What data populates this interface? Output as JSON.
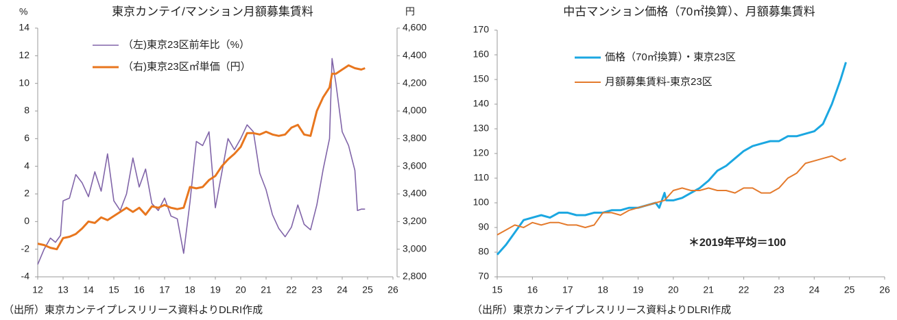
{
  "chart_data": [
    {
      "type": "line",
      "title": "東京カンテイ/マンション月額募集賃料",
      "y_label": "%",
      "y2_label": "円",
      "source": "（出所）東京カンテイプレスリリース資料よりDLRI作成",
      "legend": "upper-left",
      "xlim": [
        12,
        26
      ],
      "xticks": [
        12,
        13,
        14,
        15,
        16,
        17,
        18,
        19,
        20,
        21,
        22,
        23,
        24,
        25,
        26
      ],
      "ylim": [
        -4,
        14
      ],
      "yticks": [
        -4,
        -2,
        0,
        2,
        4,
        6,
        8,
        10,
        12,
        14
      ],
      "y2lim": [
        2800,
        4600
      ],
      "y2ticks": [
        {
          "value": 2800,
          "label": "2,800"
        },
        {
          "value": 3000,
          "label": "3,000"
        },
        {
          "value": 3200,
          "label": "3,200"
        },
        {
          "value": 3400,
          "label": "3,400"
        },
        {
          "value": 3600,
          "label": "3,600"
        },
        {
          "value": 3800,
          "label": "3,800"
        },
        {
          "value": 4000,
          "label": "4,000"
        },
        {
          "value": 4200,
          "label": "4,200"
        },
        {
          "value": 4400,
          "label": "4,400"
        },
        {
          "value": 4600,
          "label": "4,600"
        }
      ],
      "series": [
        {
          "name": "（左)東京23区前年比（%）",
          "color": "#8064a8",
          "width": 1.6,
          "x": [
            12.0,
            12.25,
            12.5,
            12.7,
            12.9,
            13.0,
            13.25,
            13.5,
            13.75,
            14.0,
            14.25,
            14.5,
            14.75,
            15.0,
            15.25,
            15.5,
            15.75,
            16.0,
            16.25,
            16.5,
            16.75,
            17.0,
            17.25,
            17.5,
            17.75,
            18.0,
            18.25,
            18.5,
            18.75,
            19.0,
            19.25,
            19.5,
            19.75,
            20.0,
            20.25,
            20.5,
            20.75,
            21.0,
            21.25,
            21.5,
            21.75,
            22.0,
            22.25,
            22.5,
            22.75,
            23.0,
            23.25,
            23.5,
            23.6,
            23.75,
            24.0,
            24.25,
            24.5,
            24.6,
            24.75,
            24.9
          ],
          "values": [
            -3.1,
            -2,
            -1.2,
            -1.5,
            -1.0,
            1.5,
            1.7,
            3.4,
            2.8,
            1.8,
            3.6,
            2.2,
            4.9,
            1.5,
            0.8,
            2.0,
            4.6,
            2.5,
            3.8,
            1.3,
            0.8,
            1.7,
            0.4,
            0.2,
            -2.3,
            1.4,
            5.8,
            5.5,
            6.5,
            1.0,
            3.5,
            6.0,
            5.2,
            6.0,
            7.0,
            6.5,
            3.5,
            2.3,
            0.5,
            -0.5,
            -1.1,
            -0.4,
            1.2,
            -0.2,
            -0.6,
            1.2,
            3.8,
            6.0,
            11.8,
            10.0,
            6.5,
            5.5,
            3.7,
            0.8,
            0.9,
            0.9
          ]
        },
        {
          "name": "（右)東京23区㎡単価（円）",
          "color": "#e8761e",
          "width": 3,
          "axis": "y2",
          "x": [
            12.0,
            12.25,
            12.5,
            12.75,
            13.0,
            13.25,
            13.5,
            13.75,
            14.0,
            14.25,
            14.5,
            14.75,
            15.0,
            15.25,
            15.5,
            15.75,
            16.0,
            16.25,
            16.5,
            16.75,
            17.0,
            17.25,
            17.5,
            17.75,
            18.0,
            18.25,
            18.5,
            18.75,
            19.0,
            19.25,
            19.5,
            19.75,
            20.0,
            20.25,
            20.5,
            20.75,
            21.0,
            21.25,
            21.5,
            21.75,
            22.0,
            22.25,
            22.5,
            22.75,
            23.0,
            23.25,
            23.5,
            23.6,
            23.75,
            24.0,
            24.25,
            24.5,
            24.75,
            24.9
          ],
          "values": [
            3040,
            3030,
            3010,
            3000,
            3080,
            3090,
            3110,
            3150,
            3200,
            3190,
            3230,
            3210,
            3240,
            3270,
            3300,
            3270,
            3300,
            3250,
            3310,
            3300,
            3320,
            3300,
            3290,
            3300,
            3450,
            3440,
            3450,
            3500,
            3530,
            3600,
            3650,
            3690,
            3740,
            3840,
            3840,
            3830,
            3850,
            3830,
            3820,
            3830,
            3880,
            3900,
            3830,
            3820,
            4000,
            4100,
            4170,
            4270,
            4270,
            4300,
            4330,
            4310,
            4300,
            4310
          ]
        }
      ]
    },
    {
      "type": "line",
      "title": "中古マンション価格（70㎡換算）、月額募集賃料",
      "source": "（出所）東京カンテイプレスリリース資料よりDLRI作成",
      "annotation": "＊2019年平均＝100",
      "legend": "upper-left",
      "xlim": [
        15,
        26
      ],
      "xticks": [
        15,
        16,
        17,
        18,
        19,
        20,
        21,
        22,
        23,
        24,
        25,
        26
      ],
      "ylim": [
        70,
        170
      ],
      "yticks": [
        70,
        80,
        90,
        100,
        110,
        120,
        130,
        140,
        150,
        160,
        170
      ],
      "series": [
        {
          "name": "価格（70㎡換算）・東京23区",
          "color": "#1ba7e1",
          "width": 3,
          "x": [
            15.0,
            15.25,
            15.5,
            15.75,
            16.0,
            16.25,
            16.5,
            16.75,
            17.0,
            17.25,
            17.5,
            17.75,
            18.0,
            18.25,
            18.5,
            18.75,
            19.0,
            19.25,
            19.5,
            19.6,
            19.75,
            19.8,
            20.0,
            20.25,
            20.5,
            20.75,
            21.0,
            21.25,
            21.5,
            21.75,
            22.0,
            22.25,
            22.5,
            22.75,
            23.0,
            23.25,
            23.5,
            23.75,
            24.0,
            24.25,
            24.5,
            24.75,
            24.9
          ],
          "values": [
            79,
            83,
            88,
            93,
            94,
            95,
            94,
            96,
            96,
            95,
            95,
            96,
            96,
            97,
            97,
            98,
            98,
            99,
            100,
            98,
            104,
            101,
            101,
            102,
            104,
            106,
            109,
            113,
            115,
            118,
            121,
            123,
            124,
            125,
            125,
            127,
            127,
            128,
            129,
            132,
            140,
            150,
            157
          ]
        },
        {
          "name": "月額募集賃料-東京23区",
          "color": "#e47a2c",
          "width": 2,
          "x": [
            15.0,
            15.25,
            15.5,
            15.75,
            16.0,
            16.25,
            16.5,
            16.75,
            17.0,
            17.25,
            17.5,
            17.75,
            18.0,
            18.25,
            18.5,
            18.75,
            19.0,
            19.25,
            19.5,
            19.75,
            20.0,
            20.25,
            20.5,
            20.75,
            21.0,
            21.25,
            21.5,
            21.75,
            22.0,
            22.25,
            22.5,
            22.75,
            23.0,
            23.25,
            23.5,
            23.75,
            24.0,
            24.25,
            24.5,
            24.75,
            24.9
          ],
          "values": [
            87,
            89,
            91,
            90,
            92,
            91,
            92,
            92,
            91,
            91,
            90,
            91,
            96,
            96,
            95,
            97,
            98,
            99,
            100,
            101,
            105,
            106,
            105,
            105,
            106,
            105,
            105,
            104,
            106,
            106,
            104,
            104,
            106,
            110,
            112,
            116,
            117,
            118,
            119,
            117,
            118
          ]
        }
      ]
    }
  ]
}
